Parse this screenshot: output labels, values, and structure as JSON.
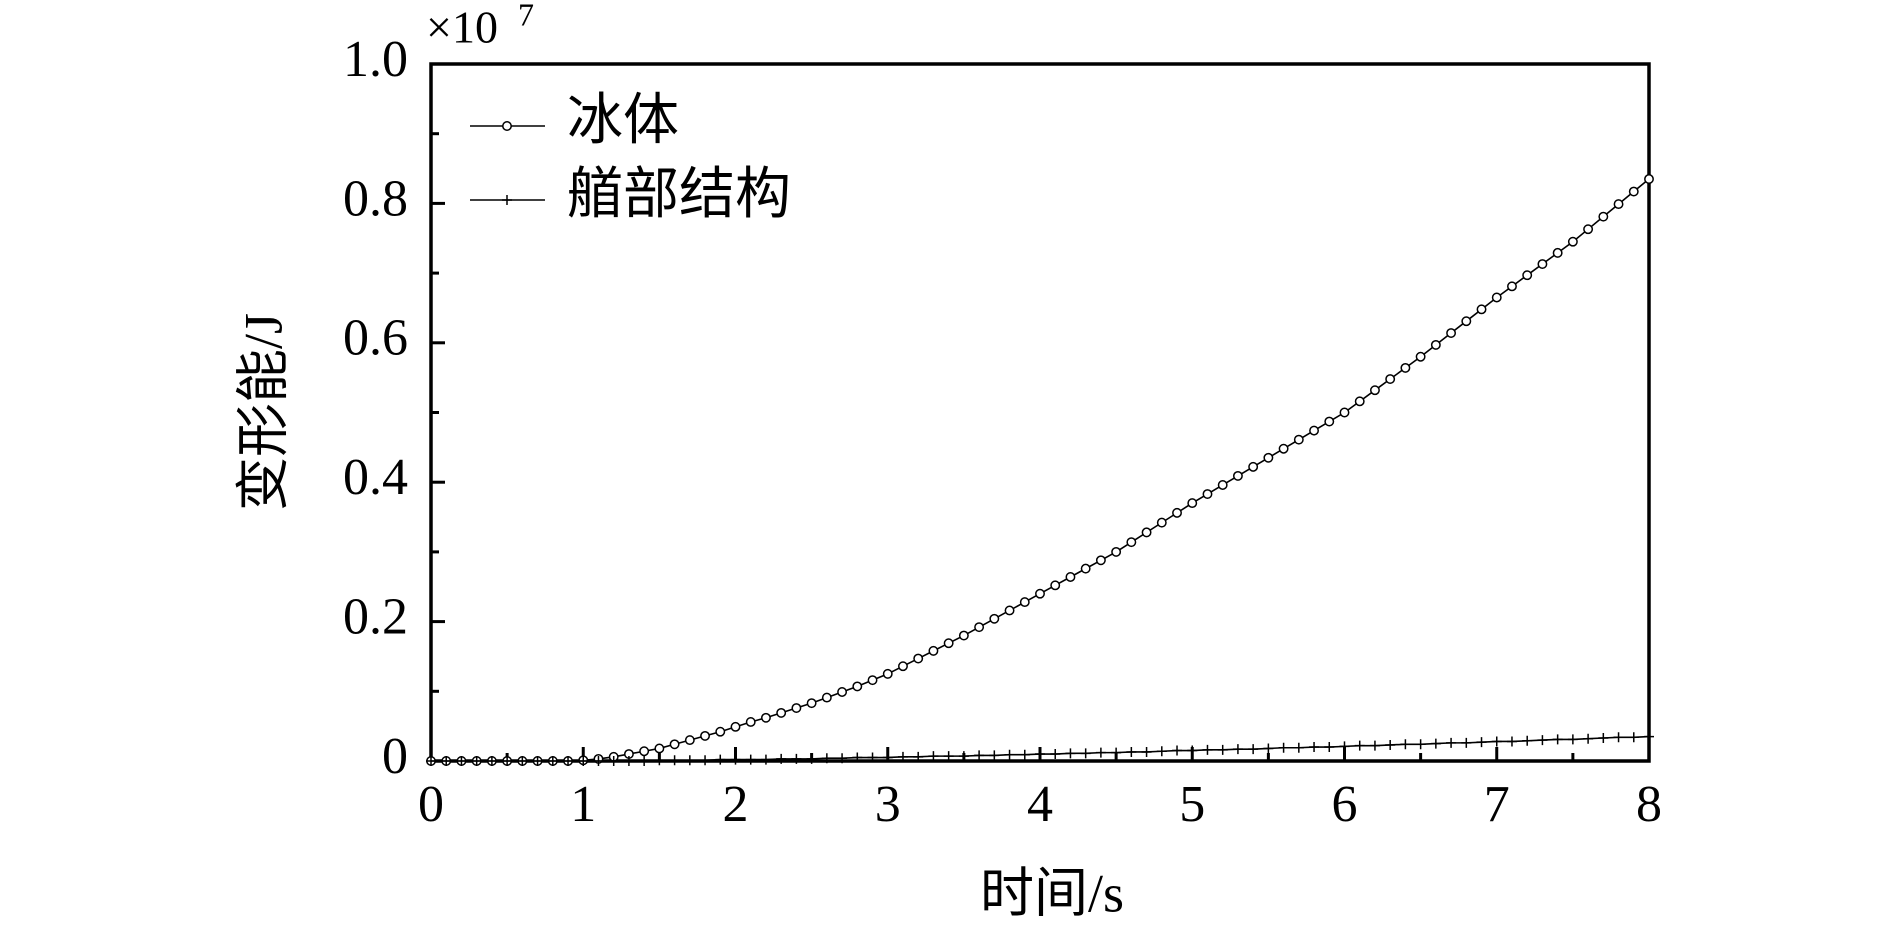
{
  "chart_data": {
    "type": "line",
    "xlabel": "时间/s",
    "ylabel": "变形能/J",
    "y_multiplier": {
      "base": "×10",
      "exponent": "7"
    },
    "x": [
      0,
      0.1,
      0.2,
      0.3,
      0.4,
      0.5,
      0.6,
      0.7,
      0.8,
      0.9,
      1,
      1.1,
      1.2,
      1.3,
      1.4,
      1.5,
      1.6,
      1.7,
      1.8,
      1.9,
      2,
      2.1,
      2.2,
      2.3,
      2.4,
      2.5,
      2.6,
      2.7,
      2.8,
      2.9,
      3,
      3.1,
      3.2,
      3.3,
      3.4,
      3.5,
      3.6,
      3.7,
      3.8,
      3.9,
      4,
      4.1,
      4.2,
      4.3,
      4.4,
      4.5,
      4.6,
      4.7,
      4.8,
      4.9,
      5,
      5.1,
      5.2,
      5.3,
      5.4,
      5.5,
      5.6,
      5.7,
      5.8,
      5.9,
      6,
      6.1,
      6.2,
      6.3,
      6.4,
      6.5,
      6.6,
      6.7,
      6.8,
      6.9,
      7,
      7.1,
      7.2,
      7.3,
      7.4,
      7.5,
      7.6,
      7.7,
      7.8,
      7.9,
      8
    ],
    "series": [
      {
        "name": "冰体",
        "color": "#000000",
        "marker": "circle",
        "values": [
          0,
          0,
          0,
          0,
          0,
          0,
          0,
          0,
          0,
          0,
          0.001,
          0.003,
          0.006,
          0.01,
          0.014,
          0.018,
          0.024,
          0.03,
          0.036,
          0.042,
          0.049,
          0.056,
          0.062,
          0.069,
          0.076,
          0.083,
          0.091,
          0.099,
          0.107,
          0.116,
          0.125,
          0.136,
          0.147,
          0.158,
          0.169,
          0.18,
          0.192,
          0.204,
          0.216,
          0.228,
          0.24,
          0.252,
          0.264,
          0.276,
          0.288,
          0.3,
          0.314,
          0.328,
          0.342,
          0.356,
          0.37,
          0.383,
          0.396,
          0.409,
          0.422,
          0.435,
          0.448,
          0.461,
          0.474,
          0.487,
          0.5,
          0.516,
          0.532,
          0.548,
          0.564,
          0.58,
          0.597,
          0.614,
          0.631,
          0.648,
          0.665,
          0.681,
          0.697,
          0.713,
          0.729,
          0.745,
          0.763,
          0.781,
          0.799,
          0.817,
          0.835
        ]
      },
      {
        "name": "艏部结构",
        "color": "#000000",
        "marker": "plus",
        "values": [
          0,
          0,
          0,
          0,
          0,
          0,
          0,
          0,
          0,
          0,
          0,
          0,
          0,
          0,
          0,
          0.001,
          0.001,
          0.001,
          0.001,
          0.002,
          0.002,
          0.002,
          0.002,
          0.003,
          0.003,
          0.003,
          0.004,
          0.004,
          0.005,
          0.005,
          0.005,
          0.006,
          0.006,
          0.007,
          0.007,
          0.007,
          0.008,
          0.008,
          0.009,
          0.009,
          0.01,
          0.01,
          0.011,
          0.011,
          0.012,
          0.012,
          0.013,
          0.013,
          0.014,
          0.015,
          0.015,
          0.016,
          0.016,
          0.017,
          0.017,
          0.018,
          0.019,
          0.019,
          0.02,
          0.02,
          0.021,
          0.022,
          0.022,
          0.023,
          0.024,
          0.024,
          0.025,
          0.026,
          0.026,
          0.027,
          0.028,
          0.028,
          0.029,
          0.03,
          0.031,
          0.031,
          0.032,
          0.033,
          0.034,
          0.034,
          0.035
        ]
      }
    ],
    "xlim": [
      0,
      8
    ],
    "xticks": [
      0,
      1,
      2,
      3,
      4,
      5,
      6,
      7,
      8
    ],
    "xminorticks": [
      0.5,
      1.5,
      2.5,
      3.5,
      4.5,
      5.5,
      6.5,
      7.5
    ],
    "ylim": [
      0,
      1
    ],
    "yticks": [
      0,
      0.2,
      0.4,
      0.6,
      0.8,
      {
        "value": 1,
        "label": "1.0"
      }
    ],
    "yminorticks": [
      0.1,
      0.3,
      0.5,
      0.7,
      0.9
    ],
    "grid": false,
    "legend": "upper left"
  }
}
